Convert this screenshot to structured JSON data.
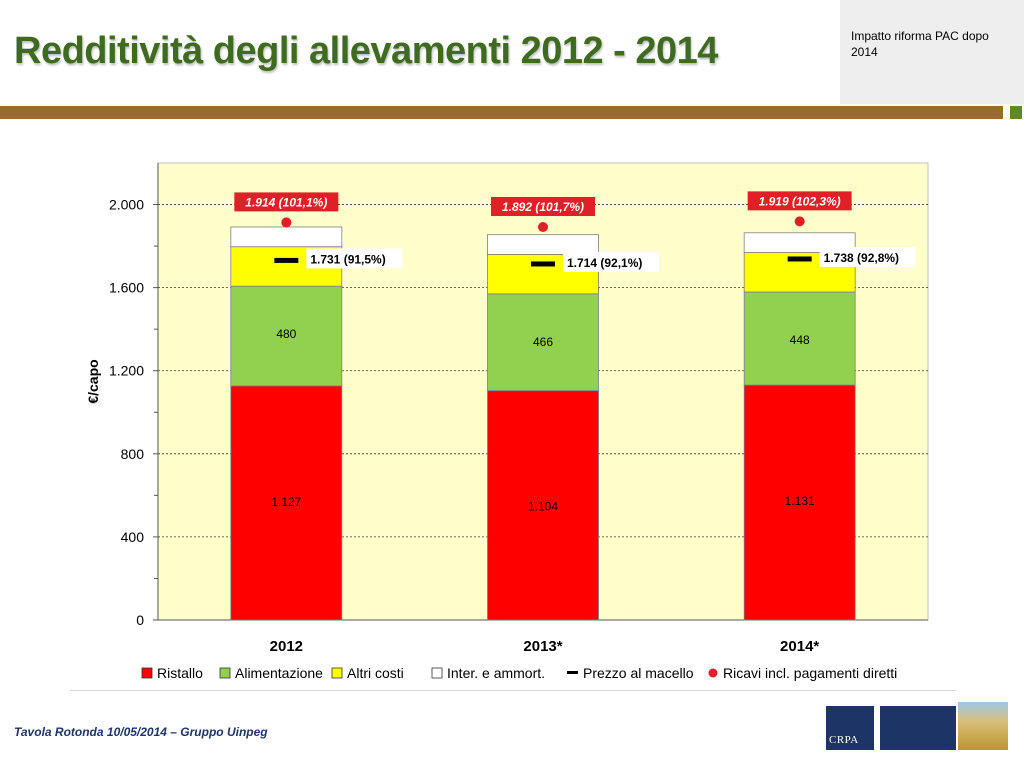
{
  "header": {
    "title": "Redditività degli allevamenti 2012 - 2014",
    "topbox": "Impatto riforma PAC dopo 2014"
  },
  "footer": {
    "text": "Tavola Rotonda  10/05/2014 – Gruppo Uinpeg",
    "logo_text": "CRPA"
  },
  "colors": {
    "title": "#3e6b1f",
    "ristallo": "#ff0000",
    "alimentazione": "#92d050",
    "altri": "#ffff00",
    "inter": "#ffffff",
    "plot_bg": "#ffffcc",
    "marker": "#e01f26"
  },
  "chart_data": {
    "type": "bar",
    "stacked": true,
    "categories": [
      "2012",
      "2013*",
      "2014*"
    ],
    "ylabel": "€/capo",
    "ylim": [
      0,
      2200
    ],
    "yticks": [
      0,
      400,
      800,
      1200,
      1600,
      2000
    ],
    "ytick_labels": [
      "0",
      "400",
      "800",
      "1.200",
      "1.600",
      "2.000"
    ],
    "grid": true,
    "legend_position": "bottom",
    "series": [
      {
        "name": "Ristallo",
        "values": [
          1127,
          1104,
          1131
        ],
        "labels": [
          "1.127",
          "1.104",
          "1.131"
        ]
      },
      {
        "name": "Alimentazione",
        "values": [
          480,
          466,
          448
        ],
        "labels": [
          "480",
          "466",
          "448"
        ]
      },
      {
        "name": "Altri costi",
        "values": [
          190,
          190,
          190
        ]
      },
      {
        "name": "Inter. e ammort.",
        "values": [
          95,
          95,
          95
        ]
      }
    ],
    "prezzo_al_macello": {
      "name": "Prezzo al macello",
      "values": [
        1731,
        1714,
        1738
      ],
      "labels": [
        "1.731  (91,5%)",
        "1.714 (92,1%)",
        "1.738 (92,8%)"
      ]
    },
    "ricavi": {
      "name": "Ricavi incl. pagamenti diretti",
      "values": [
        1914,
        1892,
        1919
      ],
      "labels": [
        "1.914 (101,1%)",
        "1.892 (101,7%)",
        "1.919 (102,3%)"
      ]
    }
  }
}
